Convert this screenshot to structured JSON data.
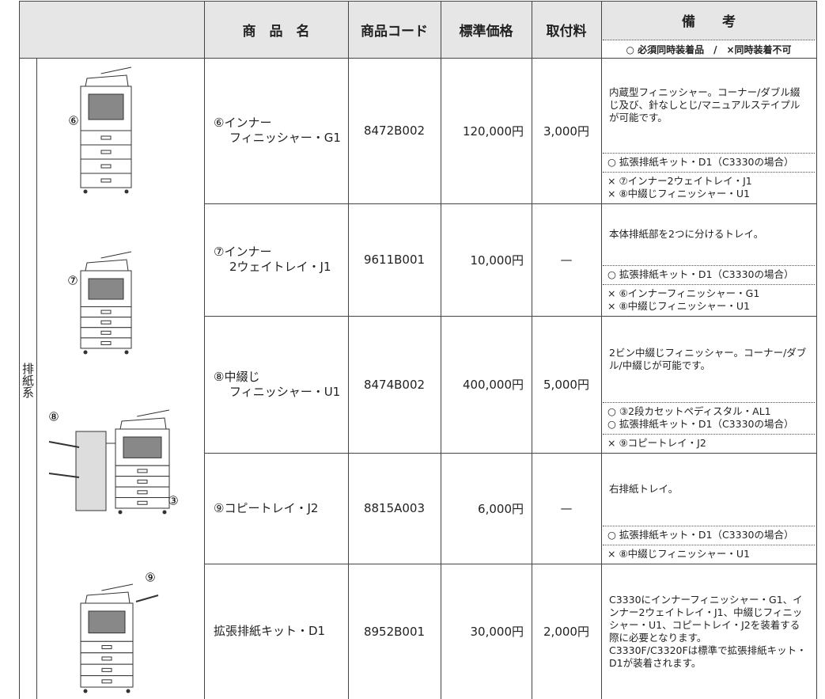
{
  "header": {
    "name": "商　品　名",
    "code": "商品コード",
    "price": "標準価格",
    "fee": "取付料",
    "remarks": "備　　考",
    "legend": "○ 必須同時装着品　/　×同時装着不可"
  },
  "category": "排紙系",
  "images": [
    "⑥",
    "⑦",
    "⑧",
    "③",
    "⑨"
  ],
  "rows": [
    {
      "name": [
        "⑥インナー",
        "フィニッシャー・G1"
      ],
      "code": "8472B002",
      "price": "120,000円",
      "fee": "3,000円",
      "note": [
        "内蔵型フィニッシャー。コーナー/ダブル綴じ及び、針なしとじ/マニュアルステイプルが可能です。"
      ],
      "required": [
        "○ 拡張排紙キット・D1（C3330の場合）"
      ],
      "excluded": [
        "× ⑦インナー2ウェイトレイ・J1",
        "× ⑧中綴じフィニッシャー・U1"
      ]
    },
    {
      "name": [
        "⑦インナー",
        "2ウェイトレイ・J1"
      ],
      "code": "9611B001",
      "price": "10,000円",
      "fee": "—",
      "note": [
        "本体排紙部を2つに分けるトレイ。"
      ],
      "required": [
        "○ 拡張排紙キット・D1（C3330の場合）"
      ],
      "excluded": [
        "× ⑥インナーフィニッシャー・G1",
        "× ⑧中綴じフィニッシャー・U1"
      ]
    },
    {
      "name": [
        "⑧中綴じ",
        "フィニッシャー・U1"
      ],
      "code": "8474B002",
      "price": "400,000円",
      "fee": "5,000円",
      "note": [
        "2ビン中綴じフィニッシャー。コーナー/ダブル/中綴じが可能です。"
      ],
      "required": [
        "○ ③2段カセットペディスタル・AL1",
        "○ 拡張排紙キット・D1（C3330の場合）"
      ],
      "excluded": [
        "× ⑨コピートレイ・J2"
      ]
    },
    {
      "name": [
        "⑨コピートレイ・J2"
      ],
      "code": "8815A003",
      "price": "6,000円",
      "fee": "—",
      "note": [
        "右排紙トレイ。"
      ],
      "required": [
        "○ 拡張排紙キット・D1（C3330の場合）"
      ],
      "excluded": [
        "× ⑧中綴じフィニッシャー・U1"
      ]
    },
    {
      "name": [
        "拡張排紙キット・D1"
      ],
      "code": "8952B001",
      "price": "30,000円",
      "fee": "2,000円",
      "note": [
        "C3330にインナーフィニッシャー・G1、インナー2ウェイトレイ・J1、中綴じフィニッシャー・U1、コピートレイ・J2を装着する際に必要となります。",
        "C3330F/C3320Fは標準で拡張排紙キット・D1が装着されます。"
      ]
    }
  ]
}
